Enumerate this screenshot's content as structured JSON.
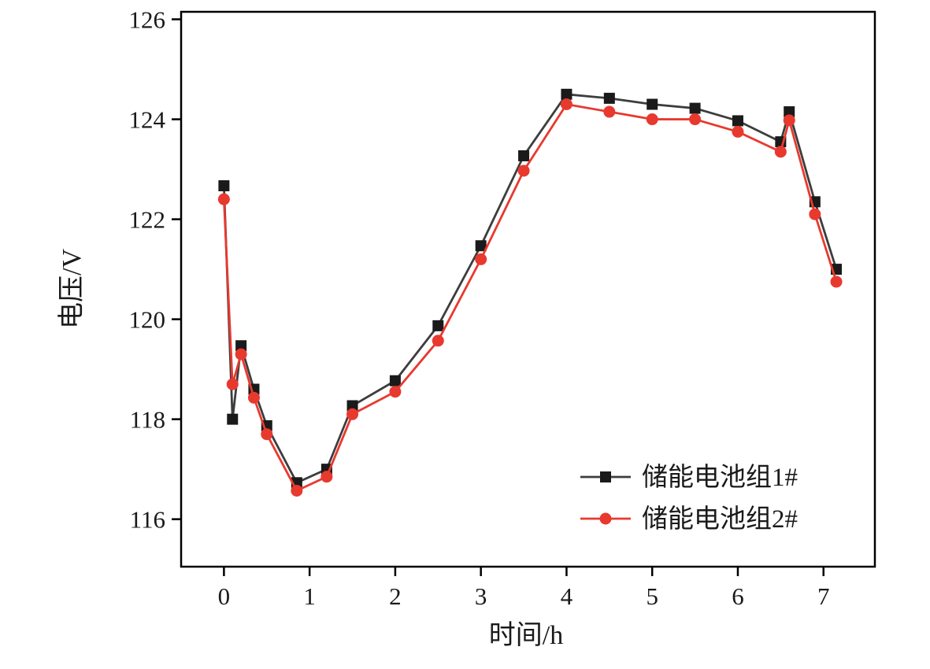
{
  "figure": {
    "background": "#ffffff"
  },
  "chart_data": {
    "type": "line",
    "title": "",
    "xlabel": "时间/h",
    "ylabel": "电压/V",
    "xlim": [
      -0.5,
      7.6
    ],
    "ylim": [
      115.05,
      126.15
    ],
    "xticks": [
      0,
      1,
      2,
      3,
      4,
      5,
      6,
      7
    ],
    "yticks": [
      116,
      118,
      120,
      122,
      124,
      126
    ],
    "grid": false,
    "legend_position": "lower-right-inside",
    "frame_color": "#000000",
    "x": [
      0,
      0.1,
      0.2,
      0.35,
      0.5,
      0.85,
      1.2,
      1.5,
      2,
      2.5,
      3,
      3.5,
      4,
      4.5,
      5,
      5.5,
      6,
      6.5,
      6.6,
      6.9,
      7.15
    ],
    "series": [
      {
        "name": "储能电池组1#",
        "marker": "square",
        "color": "#3d3d3d",
        "marker_color": "#1a1a1a",
        "values": [
          122.67,
          118.0,
          119.47,
          118.6,
          117.87,
          116.73,
          117.0,
          118.27,
          118.77,
          119.87,
          121.47,
          123.27,
          124.5,
          124.42,
          124.3,
          124.22,
          123.97,
          123.55,
          124.15,
          122.35,
          121.0
        ]
      },
      {
        "name": "储能电池组2#",
        "marker": "circle",
        "color": "#e8392f",
        "marker_color": "#e8392f",
        "values": [
          122.4,
          118.7,
          119.3,
          118.43,
          117.7,
          116.57,
          116.85,
          118.1,
          118.55,
          119.57,
          121.2,
          122.97,
          124.3,
          124.15,
          124.0,
          124.0,
          123.75,
          123.35,
          123.98,
          122.1,
          120.75
        ]
      }
    ]
  }
}
